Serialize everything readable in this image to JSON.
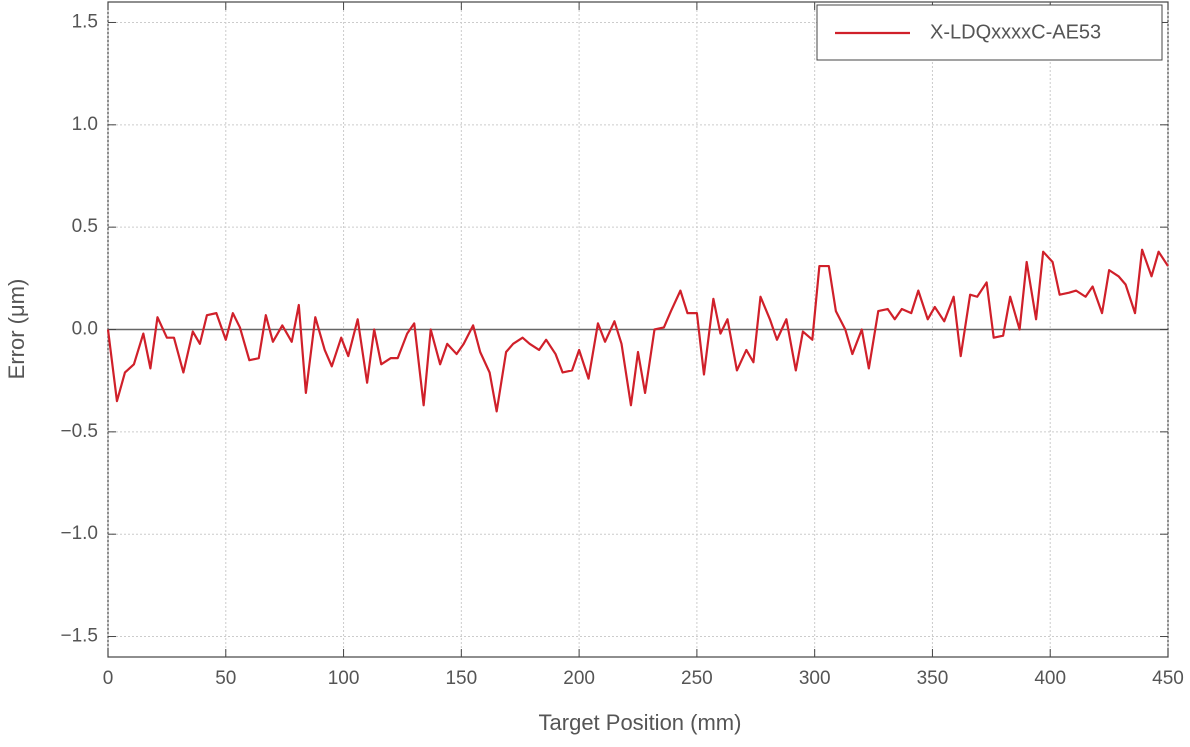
{
  "chart_data": {
    "type": "line",
    "x_label": "Target Position (mm)",
    "y_label": "Error (μm)",
    "x": [
      0,
      3.8,
      7.2,
      11,
      15,
      18,
      21,
      25,
      28,
      32,
      36,
      39,
      42,
      46,
      50,
      53,
      56,
      60,
      64,
      67,
      70,
      74,
      78,
      81,
      84,
      88,
      92,
      95,
      99,
      102,
      106,
      110,
      113,
      116,
      120,
      123,
      127,
      130,
      134,
      137,
      141,
      144,
      148,
      151,
      155,
      158,
      162,
      165,
      169,
      172,
      176,
      179,
      183,
      186,
      190,
      193,
      197,
      200,
      204,
      208,
      211,
      215,
      218,
      222,
      225,
      228,
      232,
      236,
      239,
      243,
      246,
      250,
      253,
      257,
      260,
      263,
      267,
      271,
      274,
      277,
      281,
      284,
      288,
      292,
      295,
      299,
      302,
      306,
      309,
      313,
      316,
      320,
      323,
      327,
      331,
      334,
      337,
      341,
      344,
      348,
      351,
      355,
      359,
      362,
      366,
      369,
      373,
      376,
      380,
      383,
      387,
      390,
      394,
      397,
      401,
      404,
      408,
      411,
      415,
      418,
      422,
      425,
      429,
      432,
      436,
      439,
      443,
      446,
      450
    ],
    "series": [
      {
        "name": "X-LDQxxxxC-AE53",
        "color": "#d0202a",
        "values": [
          0,
          -0.35,
          -0.21,
          -0.17,
          -0.02,
          -0.19,
          0.06,
          -0.04,
          -0.04,
          -0.21,
          -0.01,
          -0.07,
          0.07,
          0.08,
          -0.05,
          0.08,
          0.01,
          -0.15,
          -0.14,
          0.07,
          -0.06,
          0.02,
          -0.06,
          0.12,
          -0.31,
          0.06,
          -0.1,
          -0.18,
          -0.04,
          -0.13,
          0.05,
          -0.26,
          0,
          -0.17,
          -0.14,
          -0.14,
          -0.02,
          0.03,
          -0.37,
          0,
          -0.17,
          -0.07,
          -0.12,
          -0.07,
          0.02,
          -0.11,
          -0.21,
          -0.4,
          -0.11,
          -0.07,
          -0.04,
          -0.07,
          -0.1,
          -0.05,
          -0.12,
          -0.21,
          -0.2,
          -0.1,
          -0.24,
          0.03,
          -0.06,
          0.04,
          -0.07,
          -0.37,
          -0.11,
          -0.31,
          0,
          0.01,
          0.09,
          0.19,
          0.08,
          0.08,
          -0.22,
          0.15,
          -0.02,
          0.05,
          -0.2,
          -0.1,
          -0.16,
          0.16,
          0.05,
          -0.05,
          0.05,
          -0.2,
          -0.01,
          -0.05,
          0.31,
          0.31,
          0.09,
          0,
          -0.12,
          0,
          -0.19,
          0.09,
          0.1,
          0.05,
          0.1,
          0.08,
          0.19,
          0.05,
          0.11,
          0.04,
          0.16,
          -0.13,
          0.17,
          0.16,
          0.23,
          -0.04,
          -0.03,
          0.16,
          0,
          0.33,
          0.05,
          0.38,
          0.33,
          0.17,
          0.18,
          0.19,
          0.16,
          0.21,
          0.08,
          0.29,
          0.26,
          0.22,
          0.08,
          0.39,
          0.26,
          0.38,
          0.31
        ]
      }
    ],
    "xlim": [
      0,
      450
    ],
    "xticks": [
      0,
      50,
      100,
      150,
      200,
      250,
      300,
      350,
      400,
      450
    ],
    "ylim": [
      -1.6,
      1.6
    ],
    "yticks": [
      {
        "value": -1.5,
        "label": "−1.5"
      },
      {
        "value": -1,
        "label": "−1.0"
      },
      {
        "value": -0.5,
        "label": "−0.5"
      },
      {
        "value": 0,
        "label": "0.0"
      },
      0.5,
      {
        "value": 1,
        "label": "1.0"
      },
      1.5
    ],
    "grid": true,
    "legend": "upper right"
  }
}
